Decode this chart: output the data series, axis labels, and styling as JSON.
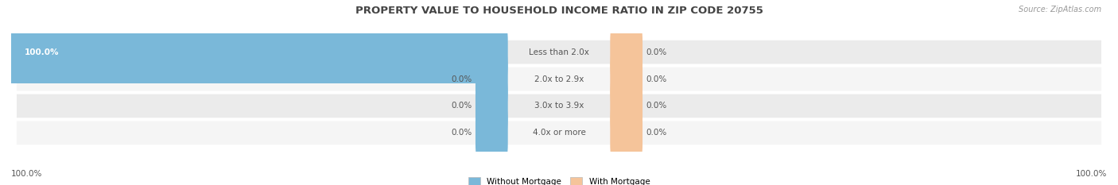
{
  "title": "PROPERTY VALUE TO HOUSEHOLD INCOME RATIO IN ZIP CODE 20755",
  "source": "Source: ZipAtlas.com",
  "categories": [
    "Less than 2.0x",
    "2.0x to 2.9x",
    "3.0x to 3.9x",
    "4.0x or more"
  ],
  "without_mortgage": [
    100.0,
    0.0,
    0.0,
    0.0
  ],
  "with_mortgage": [
    0.0,
    0.0,
    0.0,
    0.0
  ],
  "blue_color": "#7ab8d9",
  "orange_color": "#f5c49a",
  "row_bg_even": "#ebebeb",
  "row_bg_odd": "#f5f5f5",
  "title_color": "#444444",
  "label_color": "#555555",
  "source_color": "#999999",
  "legend_blue": "Without Mortgage",
  "legend_orange": "With Mortgage",
  "bottom_left": "100.0%",
  "bottom_right": "100.0%",
  "figsize": [
    14.06,
    2.33
  ],
  "dpi": 100,
  "max_val": 100,
  "stub_size": 5.5
}
